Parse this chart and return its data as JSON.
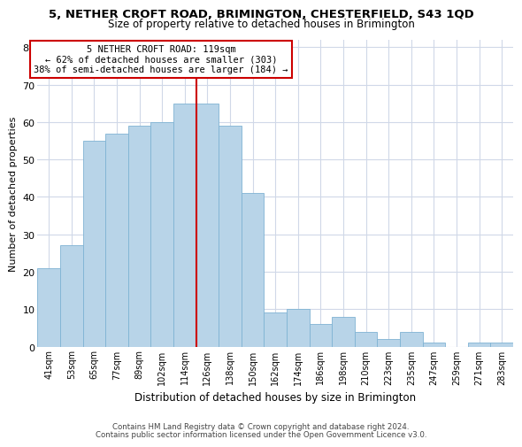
{
  "title": "5, NETHER CROFT ROAD, BRIMINGTON, CHESTERFIELD, S43 1QD",
  "subtitle": "Size of property relative to detached houses in Brimington",
  "xlabel": "Distribution of detached houses by size in Brimington",
  "ylabel": "Number of detached properties",
  "bar_labels": [
    "41sqm",
    "53sqm",
    "65sqm",
    "77sqm",
    "89sqm",
    "102sqm",
    "114sqm",
    "126sqm",
    "138sqm",
    "150sqm",
    "162sqm",
    "174sqm",
    "186sqm",
    "198sqm",
    "210sqm",
    "223sqm",
    "235sqm",
    "247sqm",
    "259sqm",
    "271sqm",
    "283sqm"
  ],
  "bar_values": [
    21,
    27,
    55,
    57,
    59,
    60,
    65,
    65,
    59,
    41,
    9,
    10,
    6,
    8,
    4,
    2,
    4,
    1,
    0,
    1,
    1
  ],
  "bar_color": "#b8d4e8",
  "bar_edge_color": "#7fb3d3",
  "vline_color": "#cc0000",
  "annotation_line1": "5 NETHER CROFT ROAD: 119sqm",
  "annotation_line2": "← 62% of detached houses are smaller (303)",
  "annotation_line3": "38% of semi-detached houses are larger (184) →",
  "annotation_box_color": "#ffffff",
  "annotation_box_edge_color": "#cc0000",
  "ylim": [
    0,
    82
  ],
  "yticks": [
    0,
    10,
    20,
    30,
    40,
    50,
    60,
    70,
    80
  ],
  "footer1": "Contains HM Land Registry data © Crown copyright and database right 2024.",
  "footer2": "Contains public sector information licensed under the Open Government Licence v3.0.",
  "background_color": "#ffffff",
  "grid_color": "#d0d8e8"
}
